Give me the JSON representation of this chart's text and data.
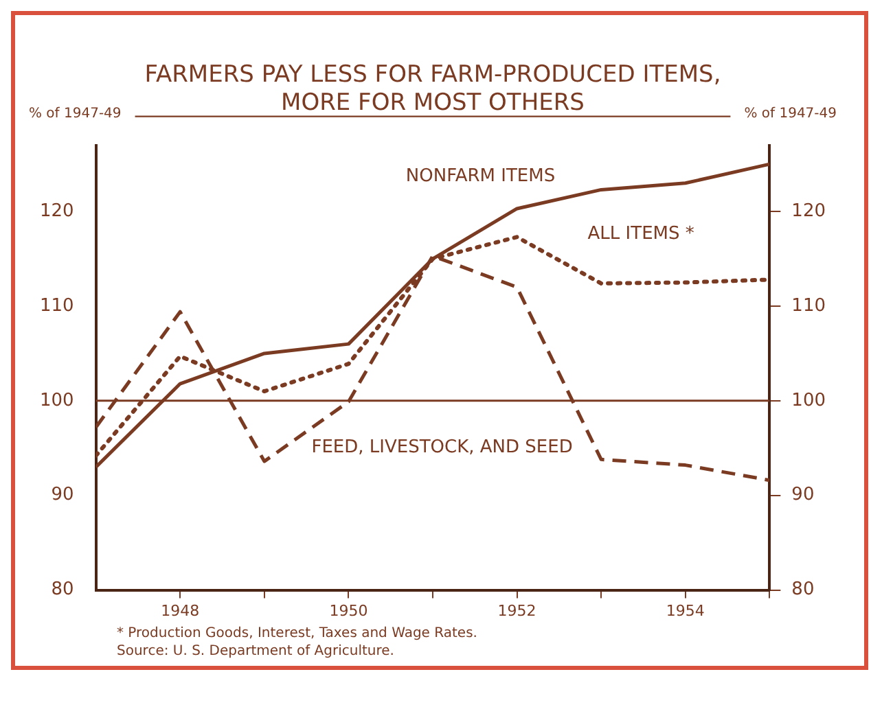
{
  "chart_data": {
    "type": "line",
    "title": "FARMERS PAY LESS FOR FARM-PRODUCED ITEMS,\nMORE FOR MOST OTHERS",
    "ylabel": "% of 1947-49",
    "y2label": "% of 1947-49",
    "x": [
      1947,
      1948,
      1949,
      1950,
      1951,
      1952,
      1953,
      1954,
      1955
    ],
    "series": [
      {
        "name": "NONFARM ITEMS",
        "color": "#7a3b22",
        "line_style": "solid",
        "values": [
          93,
          101.8,
          105,
          106,
          115,
          120.3,
          122.3,
          123,
          125
        ]
      },
      {
        "name": "ALL ITEMS *",
        "color": "#7a3b22",
        "line_style": "dotted",
        "values": [
          94.2,
          104.7,
          101,
          103.9,
          115,
          117.3,
          112.4,
          112.5,
          112.8
        ]
      },
      {
        "name": "FEED, LIVESTOCK, AND SEED",
        "color": "#7a3b22",
        "line_style": "dashed",
        "values": [
          97.2,
          109.4,
          93.6,
          99.9,
          115.3,
          112,
          93.8,
          93.2,
          91.6
        ]
      }
    ],
    "xlim": [
      1947,
      1955
    ],
    "xticks": [
      1948,
      {
        "value": 1949,
        "label": null
      },
      1950,
      {
        "value": 1951,
        "label": null
      },
      1952,
      {
        "value": 1953,
        "label": null
      },
      1954,
      {
        "value": 1955,
        "label": null
      }
    ],
    "ylim": [
      80,
      127
    ],
    "yticks": [
      80,
      90,
      100,
      110,
      120
    ],
    "y2lim": [
      80,
      127
    ],
    "y2ticks": [
      80,
      90,
      100,
      110,
      120
    ],
    "ref_lines": [
      {
        "axis": "y",
        "value": 100,
        "color": "#7a3b22"
      }
    ],
    "grid": false,
    "legend": false,
    "marker": "none",
    "annotations": [
      "* Production Goods, Interest, Taxes and Wage Rates.",
      "Source: U. S. Department of Agriculture."
    ]
  }
}
